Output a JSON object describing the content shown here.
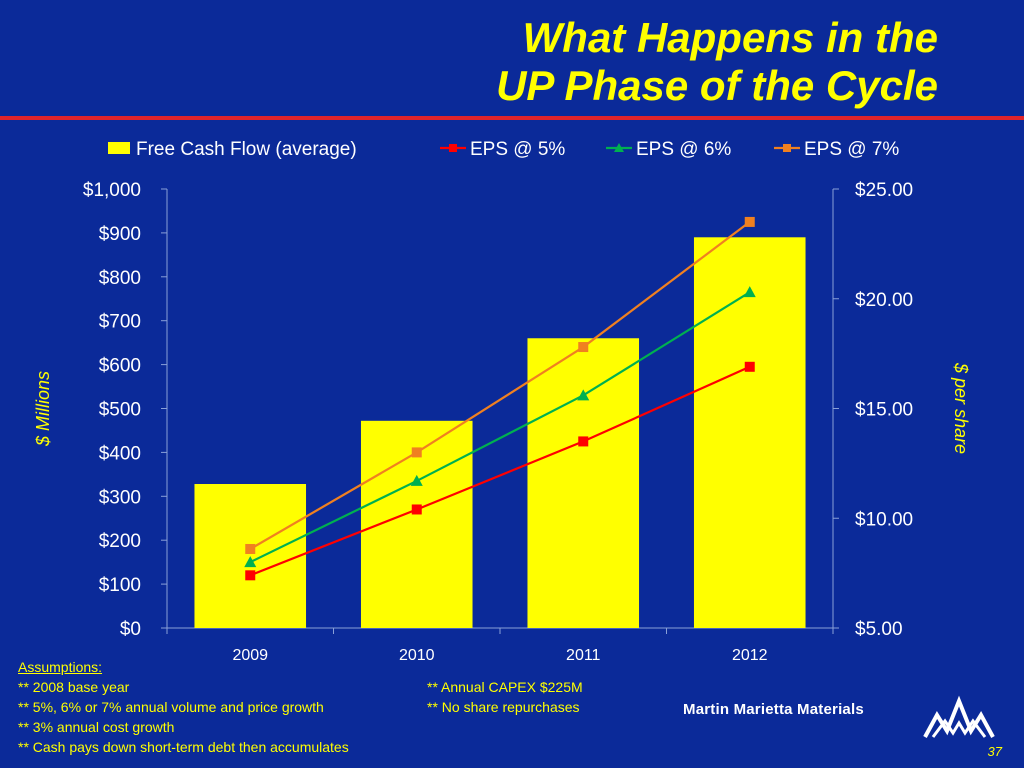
{
  "slide": {
    "title_line1": "What Happens in the",
    "title_line2": "UP Phase of the Cycle",
    "page_number": "37"
  },
  "assumptions": {
    "heading": "Assumptions:",
    "left": [
      "** 2008 base year",
      "** 5%, 6% or 7% annual volume and price growth",
      "** 3% annual cost growth",
      "** Cash pays down short-term debt then accumulates"
    ],
    "right": [
      "** Annual CAPEX $225M",
      "** No share repurchases"
    ]
  },
  "logo": {
    "text": "Martin Marietta Materials"
  },
  "colors": {
    "background": "#0b2a99",
    "title": "#ffff00",
    "rule": "#e0242b",
    "bars": "#ffff00",
    "eps5": "#ff0000",
    "eps6": "#00b050",
    "eps7": "#f08020"
  },
  "chart_data": {
    "type": "bar",
    "categories": [
      "2009",
      "2010",
      "2011",
      "2012"
    ],
    "left_axis": {
      "label": "$ Millions",
      "ylim": [
        0,
        1000
      ],
      "ticks": [
        0,
        100,
        200,
        300,
        400,
        500,
        600,
        700,
        800,
        900,
        1000
      ],
      "tick_labels": [
        "$0",
        "$100",
        "$200",
        "$300",
        "$400",
        "$500",
        "$600",
        "$700",
        "$800",
        "$900",
        "$1,000"
      ]
    },
    "right_axis": {
      "label": "$ per share",
      "ylim": [
        5,
        25
      ],
      "ticks": [
        5,
        10,
        15,
        20,
        25
      ],
      "tick_labels": [
        "$5.00",
        "$10.00",
        "$15.00",
        "$20.00",
        "$25.00"
      ]
    },
    "legend_position": "top",
    "series": [
      {
        "name": "Free Cash Flow (average)",
        "type": "bar",
        "axis": "left",
        "values": [
          328,
          472,
          660,
          890
        ]
      },
      {
        "name": "EPS @ 5%",
        "type": "line",
        "axis": "right",
        "marker": "square",
        "values": [
          7.4,
          10.4,
          13.5,
          16.9
        ]
      },
      {
        "name": "EPS @ 6%",
        "type": "line",
        "axis": "right",
        "marker": "triangle",
        "values": [
          8.0,
          11.7,
          15.6,
          20.3
        ]
      },
      {
        "name": "EPS @ 7%",
        "type": "line",
        "axis": "right",
        "marker": "square",
        "values": [
          8.6,
          13.0,
          17.8,
          23.5
        ]
      }
    ]
  }
}
